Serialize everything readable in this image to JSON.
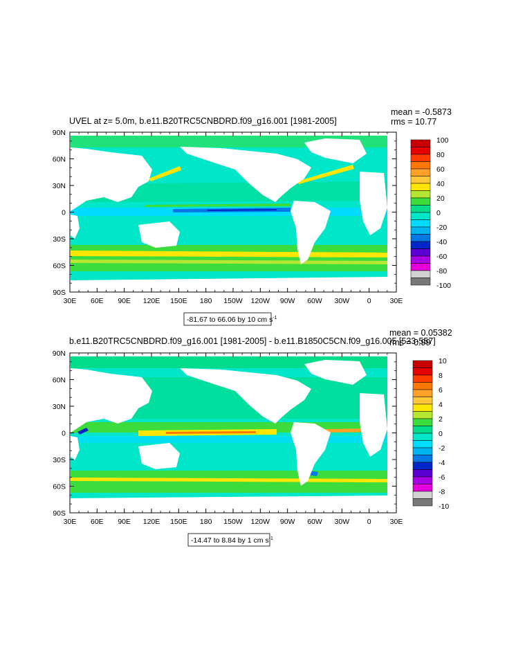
{
  "panels": [
    {
      "title": "UVEL at z=   5.0m, b.e11.B20TRC5CNBDRD.f09_g16.001 [1981-2005]",
      "stats": {
        "mean": "mean = -0.5873",
        "rms": "rms = 10.77"
      },
      "range_label": "-81.67 to 66.06 by 10 cm s",
      "range_sup": "-1",
      "colorbar": {
        "levels": [
          "100",
          "80",
          "60",
          "40",
          "20",
          "0",
          "-20",
          "-40",
          "-60",
          "-80",
          "-100"
        ],
        "colors": [
          "#c80000",
          "#e60000",
          "#ff3c00",
          "#ff7800",
          "#ffa028",
          "#ffc83c",
          "#ffe600",
          "#b4e632",
          "#3cdc3c",
          "#00dc8c",
          "#00e6c8",
          "#00dcff",
          "#00b4f0",
          "#0078e6",
          "#0028c8",
          "#5a00d2",
          "#aa00e6",
          "#e600dc",
          "#d2d2d2",
          "#787878"
        ]
      }
    },
    {
      "title": "b.e11.B20TRC5CNBDRD.f09_g16.001 [1981-2005] - b.e11.B1850C5CN.f09_g16.005 [533-557]",
      "stats": {
        "mean": "mean = 0.05382",
        "rms": "rms = 0.99"
      },
      "range_label": "-14.47 to 8.84 by 1 cm s",
      "range_sup": "-1",
      "colorbar": {
        "levels": [
          "10",
          "8",
          "6",
          "4",
          "2",
          "0",
          "-2",
          "-4",
          "-6",
          "-8",
          "-10"
        ],
        "colors": [
          "#c80000",
          "#e60000",
          "#ff3c00",
          "#ff7800",
          "#ffa028",
          "#ffc83c",
          "#ffe600",
          "#b4e632",
          "#3cdc3c",
          "#00dc8c",
          "#00e6c8",
          "#00dcff",
          "#00b4f0",
          "#0078e6",
          "#0028c8",
          "#5a00d2",
          "#aa00e6",
          "#e600dc",
          "#d2d2d2",
          "#787878"
        ]
      }
    }
  ],
  "chart_data": [
    {
      "type": "heatmap",
      "title": "UVEL at z=   5.0m, b.e11.B20TRC5CNBDRD.f09_g16.001 [1981-2005]",
      "x_tick_labels": [
        "30E",
        "60E",
        "90E",
        "120E",
        "150E",
        "180",
        "150W",
        "120W",
        "90W",
        "60W",
        "30W",
        "0",
        "30E"
      ],
      "y_tick_labels": [
        "90N",
        "60N",
        "30N",
        "0",
        "30S",
        "60S",
        "90S"
      ],
      "xlim": [
        "30E",
        "30E"
      ],
      "ylim": [
        "90S",
        "90N"
      ],
      "contour_levels": [
        -100,
        -90,
        -80,
        -70,
        -60,
        -50,
        -40,
        -30,
        -20,
        -10,
        0,
        10,
        20,
        30,
        40,
        50,
        60,
        70,
        80,
        90,
        100
      ],
      "min": -81.67,
      "max": 66.06,
      "interval": 10,
      "units": "cm s-1",
      "mean": -0.5873,
      "rms": 10.77
    },
    {
      "type": "heatmap",
      "title": "b.e11.B20TRC5CNBDRD.f09_g16.001 [1981-2005] - b.e11.B1850C5CN.f09_g16.005 [533-557]",
      "x_tick_labels": [
        "30E",
        "60E",
        "90E",
        "120E",
        "150E",
        "180",
        "150W",
        "120W",
        "90W",
        "60W",
        "30W",
        "0",
        "30E"
      ],
      "y_tick_labels": [
        "90N",
        "60N",
        "30N",
        "0",
        "30S",
        "60S",
        "90S"
      ],
      "xlim": [
        "30E",
        "30E"
      ],
      "ylim": [
        "90S",
        "90N"
      ],
      "contour_levels": [
        -10,
        -9,
        -8,
        -7,
        -6,
        -5,
        -4,
        -3,
        -2,
        -1,
        0,
        1,
        2,
        3,
        4,
        5,
        6,
        7,
        8,
        9,
        10
      ],
      "min": -14.47,
      "max": 8.84,
      "interval": 1,
      "units": "cm s-1",
      "mean": 0.05382,
      "rms": 0.99
    }
  ]
}
